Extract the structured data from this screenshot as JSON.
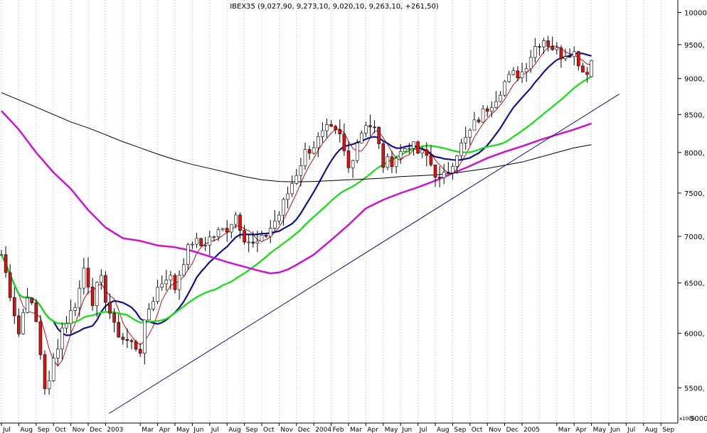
{
  "chart_data": {
    "type": "candlestick",
    "title": "IBEX35 (9,027,90, 9,273,10, 9,020,10, 9,263,10, +261,50)",
    "scale": "log",
    "grid": "vertical-dotted",
    "ylim": [
      5200,
      10200
    ],
    "y_ticks": [
      {
        "value": 10000,
        "label": "10000,"
      },
      {
        "value": 9500,
        "label": "9500,"
      },
      {
        "value": 9000,
        "label": "9000,"
      },
      {
        "value": 8500,
        "label": "8500,"
      },
      {
        "value": 8000,
        "label": "8000,"
      },
      {
        "value": 7500,
        "label": "7500,"
      },
      {
        "value": 7000,
        "label": "7000,"
      },
      {
        "value": 6500,
        "label": "6500,"
      },
      {
        "value": 6000,
        "label": "6000,"
      },
      {
        "value": 5500,
        "label": "5500,"
      }
    ],
    "bottom_right_label": "5000,",
    "bottom_right_code": "x1000",
    "x_labels": [
      {
        "label": "Jul",
        "month_index": 0
      },
      {
        "label": "Aug",
        "month_index": 1
      },
      {
        "label": "Sep",
        "month_index": 2
      },
      {
        "label": "Oct",
        "month_index": 3
      },
      {
        "label": "Nov",
        "month_index": 4
      },
      {
        "label": "Dec",
        "month_index": 5
      },
      {
        "label": "2003",
        "month_index": 6
      },
      {
        "label": "Mar",
        "month_index": 8
      },
      {
        "label": "Apr",
        "month_index": 9
      },
      {
        "label": "May",
        "month_index": 10
      },
      {
        "label": "Jun",
        "month_index": 11
      },
      {
        "label": "Jul",
        "month_index": 12
      },
      {
        "label": "Aug",
        "month_index": 13
      },
      {
        "label": "Sep",
        "month_index": 14
      },
      {
        "label": "Oct",
        "month_index": 15
      },
      {
        "label": "Nov",
        "month_index": 16
      },
      {
        "label": "Dec",
        "month_index": 17
      },
      {
        "label": "2004",
        "month_index": 18
      },
      {
        "label": "Feb",
        "month_index": 19
      },
      {
        "label": "Mar",
        "month_index": 20
      },
      {
        "label": "Apr",
        "month_index": 21
      },
      {
        "label": "May",
        "month_index": 22
      },
      {
        "label": "Jun",
        "month_index": 23
      },
      {
        "label": "Jul",
        "month_index": 24
      },
      {
        "label": "Aug",
        "month_index": 25
      },
      {
        "label": "Sep",
        "month_index": 26
      },
      {
        "label": "Oct",
        "month_index": 27
      },
      {
        "label": "Nov",
        "month_index": 28
      },
      {
        "label": "Dec",
        "month_index": 29
      },
      {
        "label": "2005",
        "month_index": 30
      },
      {
        "label": "Mar",
        "month_index": 32
      },
      {
        "label": "Apr",
        "month_index": 33
      },
      {
        "label": "May",
        "month_index": 34
      },
      {
        "label": "Jun",
        "month_index": 35
      },
      {
        "label": "Jul",
        "month_index": 36
      },
      {
        "label": "Aug",
        "month_index": 37
      },
      {
        "label": "Sep",
        "month_index": 38
      }
    ],
    "anchors": [
      [
        0,
        6800
      ],
      [
        1,
        6000
      ],
      [
        1.5,
        6400
      ],
      [
        2,
        6100
      ],
      [
        2.6,
        5400
      ],
      [
        3,
        5750
      ],
      [
        3.5,
        6050
      ],
      [
        4,
        6200
      ],
      [
        4.4,
        6350
      ],
      [
        4.8,
        6700
      ],
      [
        5.2,
        6300
      ],
      [
        5.7,
        6550
      ],
      [
        6,
        6350
      ],
      [
        6.5,
        6050
      ],
      [
        7,
        5950
      ],
      [
        7.5,
        5900
      ],
      [
        8,
        5850
      ],
      [
        8.4,
        6200
      ],
      [
        9,
        6450
      ],
      [
        9.6,
        6600
      ],
      [
        10,
        6450
      ],
      [
        10.5,
        6750
      ],
      [
        11,
        6950
      ],
      [
        11.5,
        6900
      ],
      [
        12,
        6980
      ],
      [
        13,
        7100
      ],
      [
        13.5,
        7250
      ],
      [
        14,
        7000
      ],
      [
        14.5,
        6900
      ],
      [
        15,
        6950
      ],
      [
        15.5,
        7100
      ],
      [
        16,
        7250
      ],
      [
        16.5,
        7500
      ],
      [
        17,
        7750
      ],
      [
        17.5,
        8000
      ],
      [
        18,
        8100
      ],
      [
        18.8,
        8300
      ],
      [
        19.5,
        8200
      ],
      [
        20,
        7800
      ],
      [
        20.5,
        8150
      ],
      [
        21,
        8400
      ],
      [
        21.5,
        8300
      ],
      [
        22,
        7850
      ],
      [
        22.5,
        7900
      ],
      [
        23,
        8000
      ],
      [
        23.5,
        8120
      ],
      [
        24,
        8000
      ],
      [
        24.5,
        7950
      ],
      [
        25,
        7750
      ],
      [
        25.3,
        7620
      ],
      [
        25.8,
        7800
      ],
      [
        26.2,
        8000
      ],
      [
        26.8,
        8180
      ],
      [
        27.2,
        8350
      ],
      [
        28,
        8600
      ],
      [
        28.5,
        8750
      ],
      [
        29,
        8950
      ],
      [
        29.5,
        9050
      ],
      [
        30,
        9100
      ],
      [
        30.8,
        9500
      ],
      [
        31.2,
        9600
      ],
      [
        31.8,
        9450
      ],
      [
        32.2,
        9350
      ],
      [
        32.8,
        9420
      ],
      [
        33.1,
        9350
      ],
      [
        33.6,
        9050
      ],
      [
        34,
        9263.1
      ]
    ],
    "last_bar": {
      "open": 9027.9,
      "high": 9273.1,
      "low": 9020.1,
      "close": 9263.1,
      "change": 261.5
    },
    "series": [
      {
        "name": "price",
        "style": "candlestick",
        "up_color": "#ffffff",
        "down_color": "#e01010",
        "outline": "#000000"
      },
      {
        "name": "MA short",
        "color": "#c01010",
        "period_bars": 5
      },
      {
        "name": "MA 13",
        "color": "#101090",
        "period_bars": 13
      },
      {
        "name": "MA 30",
        "color": "#10e010",
        "period_bars": 30
      },
      {
        "name": "MA long (magenta)",
        "color": "#d010d0",
        "points": [
          [
            0,
            8550
          ],
          [
            1,
            8300
          ],
          [
            2,
            8000
          ],
          [
            3,
            7750
          ],
          [
            4,
            7550
          ],
          [
            5,
            7300
          ],
          [
            6,
            7100
          ],
          [
            7,
            6980
          ],
          [
            8,
            6950
          ],
          [
            9,
            6900
          ],
          [
            10,
            6880
          ],
          [
            11,
            6840
          ],
          [
            12,
            6780
          ],
          [
            13,
            6720
          ],
          [
            14,
            6670
          ],
          [
            15,
            6620
          ],
          [
            15.5,
            6600
          ],
          [
            16,
            6610
          ],
          [
            16.5,
            6640
          ],
          [
            17,
            6690
          ],
          [
            18,
            6800
          ],
          [
            19,
            6960
          ],
          [
            20,
            7130
          ],
          [
            21,
            7320
          ],
          [
            22,
            7420
          ],
          [
            23,
            7500
          ],
          [
            24,
            7570
          ],
          [
            25,
            7650
          ],
          [
            26,
            7740
          ],
          [
            27,
            7830
          ],
          [
            28,
            7930
          ],
          [
            29,
            8010
          ],
          [
            30,
            8080
          ],
          [
            31,
            8160
          ],
          [
            32,
            8230
          ],
          [
            33,
            8300
          ],
          [
            34,
            8380
          ]
        ]
      },
      {
        "name": "MA very long (black)",
        "color": "#000000",
        "points": [
          [
            0,
            8800
          ],
          [
            1,
            8700
          ],
          [
            2,
            8600
          ],
          [
            3,
            8500
          ],
          [
            4,
            8400
          ],
          [
            5,
            8320
          ],
          [
            6,
            8230
          ],
          [
            7,
            8140
          ],
          [
            8,
            8060
          ],
          [
            9,
            7980
          ],
          [
            10,
            7910
          ],
          [
            11,
            7850
          ],
          [
            12,
            7800
          ],
          [
            13,
            7750
          ],
          [
            14,
            7700
          ],
          [
            15,
            7660
          ],
          [
            16,
            7640
          ],
          [
            17,
            7635
          ],
          [
            18,
            7640
          ],
          [
            19,
            7650
          ],
          [
            20,
            7660
          ],
          [
            21,
            7670
          ],
          [
            22,
            7680
          ],
          [
            23,
            7700
          ],
          [
            24,
            7710
          ],
          [
            25,
            7720
          ],
          [
            26,
            7740
          ],
          [
            27,
            7770
          ],
          [
            28,
            7800
          ],
          [
            29,
            7840
          ],
          [
            30,
            7880
          ],
          [
            31,
            7940
          ],
          [
            32,
            8000
          ],
          [
            33,
            8060
          ],
          [
            34,
            8100
          ]
        ]
      },
      {
        "name": "trendline",
        "color": "#101070",
        "points": [
          [
            6.2,
            5280
          ],
          [
            35.6,
            8780
          ]
        ]
      }
    ]
  }
}
